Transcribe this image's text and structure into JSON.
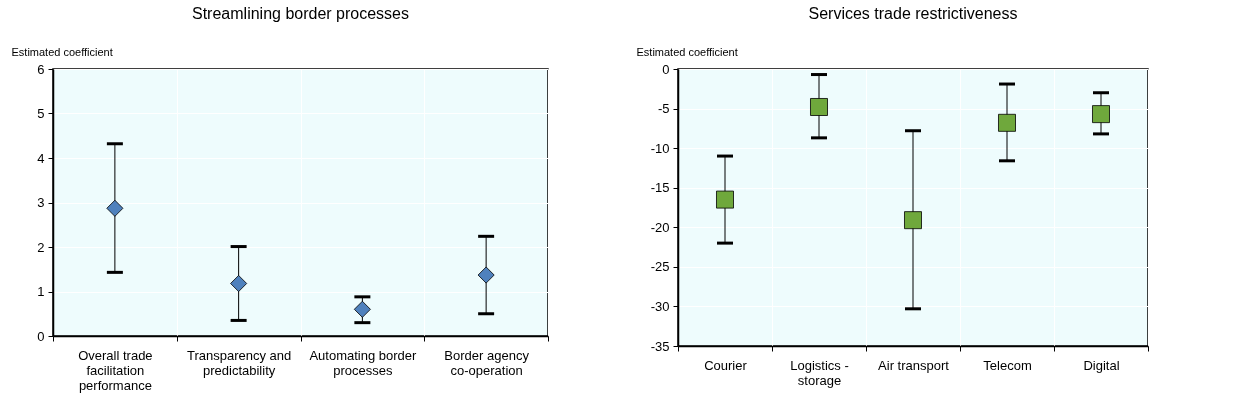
{
  "chart_data": [
    {
      "type": "scatter",
      "title": "Streamlining border processes",
      "ylabel": "Estimated coefficient",
      "categories": [
        "Overall trade facilitation performance",
        "Transparency and predictability",
        "Automating border processes",
        "Border agency co-operation"
      ],
      "series": [
        {
          "color": "#4f81bd",
          "values": [
            2.87,
            1.18,
            0.6,
            1.37
          ],
          "errors": [
            [
              1.43,
              4.32
            ],
            [
              0.35,
              2.01
            ],
            [
              0.3,
              0.88
            ],
            [
              0.5,
              2.24
            ]
          ]
        }
      ],
      "ylim": [
        0,
        6
      ],
      "yticks": [
        0,
        1,
        2,
        3,
        4,
        5,
        6
      ],
      "grid": true,
      "marker": "diamond"
    },
    {
      "type": "scatter",
      "title": "Services trade restrictiveness",
      "ylabel": "Estimated coefficient",
      "categories": [
        "Courier",
        "Logistics - storage",
        "Air transport",
        "Telecom",
        "Digital"
      ],
      "series": [
        {
          "color": "#6fa83c",
          "values": [
            -16.5,
            -4.8,
            -19.1,
            -6.8,
            -5.7
          ],
          "errors": [
            [
              -22,
              -11
            ],
            [
              -8.7,
              -0.7
            ],
            [
              -30.3,
              -7.8
            ],
            [
              -11.6,
              -1.9
            ],
            [
              -8.2,
              -3
            ]
          ]
        }
      ],
      "ylim": [
        -35,
        0
      ],
      "yticks": [
        -35,
        -30,
        -25,
        -20,
        -15,
        -10,
        -5,
        0
      ],
      "grid": true,
      "marker": "square"
    }
  ]
}
